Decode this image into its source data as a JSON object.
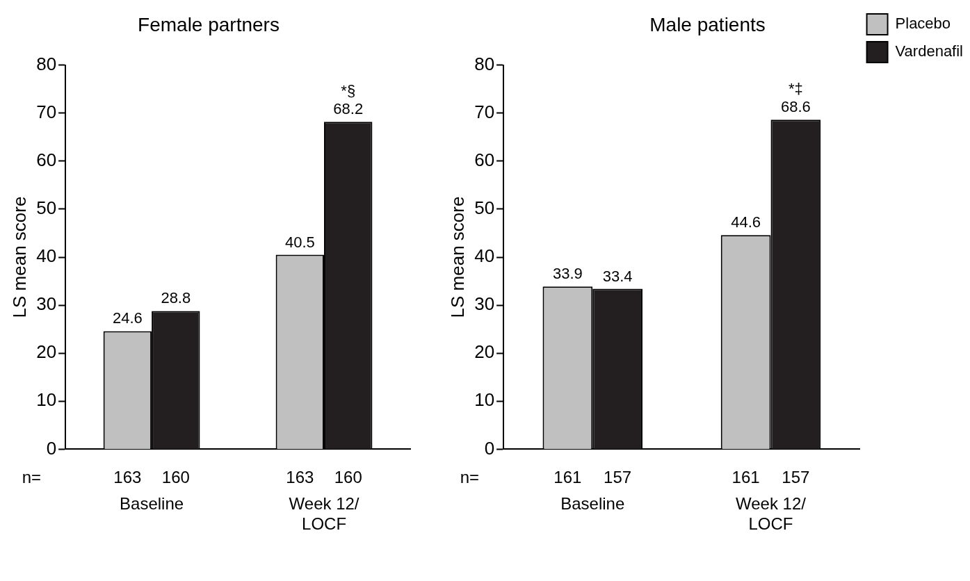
{
  "chart_data": [
    {
      "type": "bar",
      "title": "Female partners",
      "ylabel": "LS mean score",
      "categories": [
        "Baseline",
        "Week 12/\nLOCF"
      ],
      "series": [
        {
          "color": "#c0c0c0",
          "values": [
            24.6,
            40.5
          ]
        },
        {
          "color": "#231f20",
          "values": [
            28.8,
            68.2
          ]
        }
      ],
      "ylim": [
        0,
        80
      ],
      "yticks": [
        0,
        10,
        20,
        30,
        40,
        50,
        60,
        70,
        80
      ],
      "grid": false,
      "legend": false,
      "data_labels": true,
      "annotations": [
        {
          "text": "*§",
          "x": "Week 12/\nLOCF",
          "y": 68.2
        },
        "n=",
        "163",
        "160",
        "163",
        "160"
      ]
    },
    {
      "type": "bar",
      "title": "Male patients",
      "ylabel": "LS mean score",
      "categories": [
        "Baseline",
        "Week 12/\nLOCF"
      ],
      "series": [
        {
          "name": "Placebo",
          "color": "#c0c0c0",
          "values": [
            33.9,
            44.6
          ]
        },
        {
          "name": "Vardenafil",
          "color": "#231f20",
          "values": [
            33.4,
            68.6
          ]
        }
      ],
      "ylim": [
        0,
        80
      ],
      "yticks": [
        0,
        10,
        20,
        30,
        40,
        50,
        60,
        70,
        80
      ],
      "grid": false,
      "legend": "right",
      "data_labels": true,
      "annotations": [
        {
          "text": "*‡",
          "x": "Week 12/\nLOCF",
          "y": 68.6
        },
        "n=",
        "161",
        "157",
        "161",
        "157"
      ]
    }
  ]
}
